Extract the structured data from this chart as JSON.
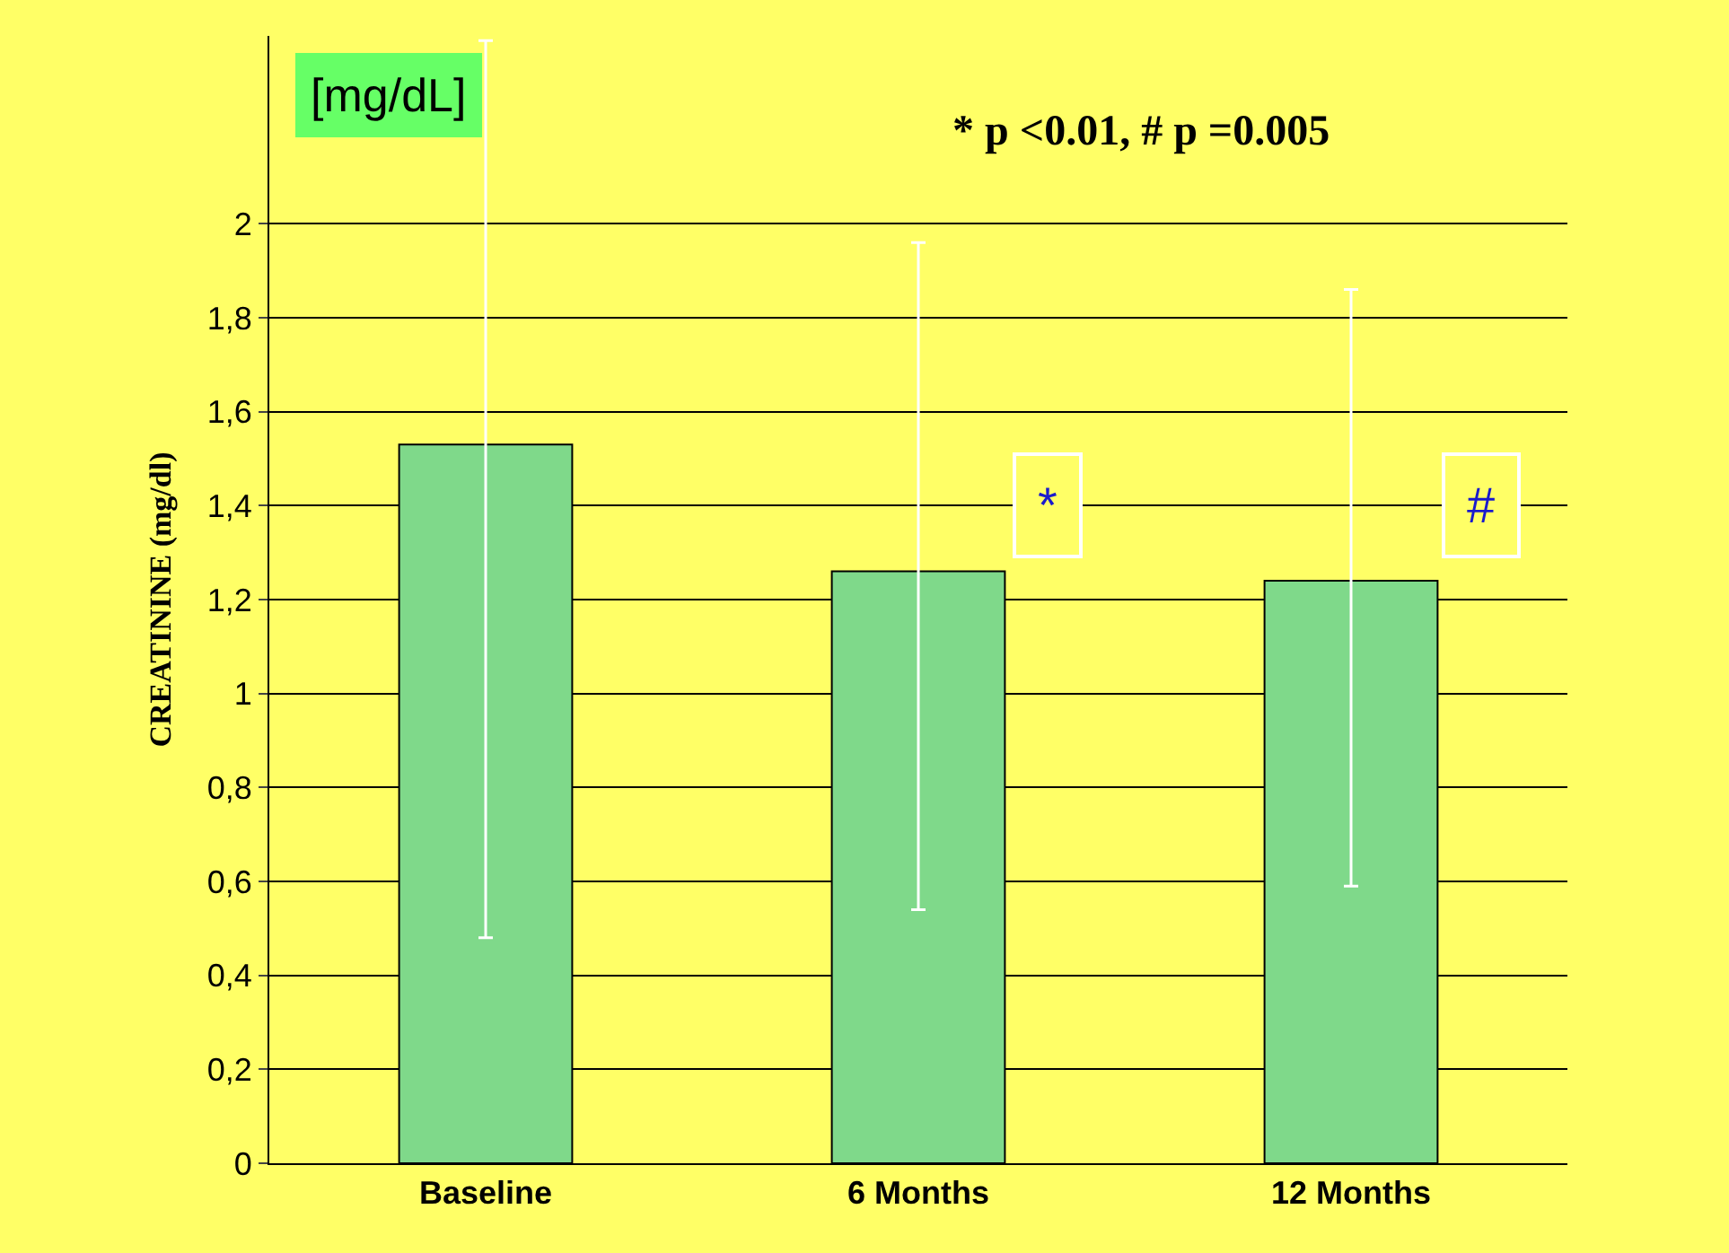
{
  "chart_data": {
    "type": "bar",
    "title": "* p <0.01, # p =0.005",
    "ylabel": "CREATININE (mg/dl)",
    "categories": [
      "Baseline",
      "6 Months",
      "12 Months"
    ],
    "values": [
      1.53,
      1.26,
      1.24
    ],
    "color": "#7fd98a",
    "errors": [
      [
        0.48,
        2.39
      ],
      [
        0.54,
        1.96
      ],
      [
        0.59,
        1.86
      ]
    ],
    "ylim": [
      0,
      2.4
    ],
    "yticks": [
      {
        "value": 0,
        "label": "0"
      },
      {
        "value": 0.2,
        "label": "0,2"
      },
      {
        "value": 0.4,
        "label": "0,4"
      },
      {
        "value": 0.6,
        "label": "0,6"
      },
      {
        "value": 0.8,
        "label": "0,8"
      },
      {
        "value": 1,
        "label": "1"
      },
      {
        "value": 1.2,
        "label": "1,2"
      },
      {
        "value": 1.4,
        "label": "1,4"
      },
      {
        "value": 1.6,
        "label": "1,6"
      },
      {
        "value": 1.8,
        "label": "1,8"
      },
      {
        "value": 2,
        "label": "2"
      }
    ],
    "grid": "y",
    "legend": false,
    "annotations": [
      "[mg/dL]",
      {
        "text": "*",
        "x": "6 Months",
        "y": 1.4
      },
      {
        "text": "#",
        "x": "12 Months",
        "y": 1.4
      }
    ]
  }
}
